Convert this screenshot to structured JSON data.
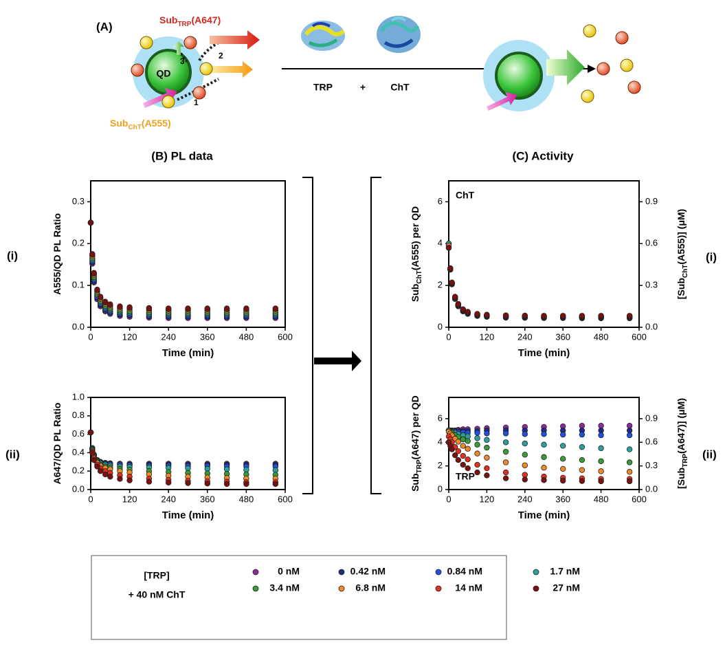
{
  "schematic": {
    "label": "(A)",
    "sub_trp": [
      "Sub",
      "TRP",
      "(A647)"
    ],
    "sub_cht": [
      "Sub",
      "ChT",
      "(A555)"
    ],
    "qd": "QD",
    "steps": [
      "1",
      "2",
      "3"
    ],
    "enzymes": [
      "TRP",
      "+",
      "ChT"
    ]
  },
  "panels": {
    "b_title": "(B)  PL data",
    "c_title": "(C)  Activity",
    "rows": [
      "(i)",
      "(ii)"
    ]
  },
  "legend": {
    "title": [
      "[TRP]",
      "+ 40 nM ChT"
    ],
    "entries": [
      {
        "name": "0 nM",
        "color": "#8e2a9e"
      },
      {
        "name": "0.42 nM",
        "color": "#1f2a8a"
      },
      {
        "name": "0.84 nM",
        "color": "#1f50e0"
      },
      {
        "name": "1.7 nM",
        "color": "#2aa19a"
      },
      {
        "name": "3.4 nM",
        "color": "#3a9a3a"
      },
      {
        "name": "6.8 nM",
        "color": "#f08a28"
      },
      {
        "name": "14 nM",
        "color": "#e03020"
      },
      {
        "name": "27 nM",
        "color": "#7a1010"
      }
    ]
  },
  "chart_data": [
    {
      "type": "scatter",
      "xlabel": "Time (min)",
      "ylabel": [
        "A555/QD PL Ratio"
      ],
      "x": [
        0,
        5,
        10,
        20,
        30,
        45,
        60,
        90,
        120,
        180,
        240,
        300,
        360,
        420,
        480,
        570
      ],
      "xlim": [
        0,
        600
      ],
      "xticks": [
        0,
        120,
        240,
        360,
        480,
        600
      ],
      "ylim": [
        0,
        0.35
      ],
      "yticks": [
        {
          "value": 0,
          "label": "0.0"
        },
        0.1,
        0.2,
        0.3
      ],
      "series": [
        {
          "values": [
            0.25,
            0.152,
            0.107,
            0.067,
            0.05,
            0.038,
            0.032,
            0.027,
            0.025,
            0.023,
            0.022,
            0.022,
            0.022,
            0.022,
            0.022,
            0.022
          ]
        },
        {
          "values": [
            0.25,
            0.155,
            0.11,
            0.07,
            0.053,
            0.041,
            0.035,
            0.03,
            0.028,
            0.026,
            0.025,
            0.025,
            0.025,
            0.025,
            0.025,
            0.025
          ]
        },
        {
          "values": [
            0.25,
            0.158,
            0.113,
            0.073,
            0.056,
            0.044,
            0.038,
            0.033,
            0.031,
            0.029,
            0.028,
            0.028,
            0.028,
            0.028,
            0.028,
            0.028
          ]
        },
        {
          "values": [
            0.25,
            0.162,
            0.117,
            0.077,
            0.06,
            0.048,
            0.042,
            0.037,
            0.035,
            0.033,
            0.032,
            0.032,
            0.032,
            0.032,
            0.032,
            0.032
          ]
        },
        {
          "values": [
            0.25,
            0.165,
            0.12,
            0.08,
            0.063,
            0.051,
            0.045,
            0.04,
            0.038,
            0.036,
            0.035,
            0.035,
            0.035,
            0.035,
            0.035,
            0.035
          ]
        },
        {
          "values": [
            0.25,
            0.17,
            0.125,
            0.085,
            0.068,
            0.056,
            0.05,
            0.045,
            0.043,
            0.041,
            0.04,
            0.04,
            0.04,
            0.04,
            0.04,
            0.04
          ]
        },
        {
          "values": [
            0.25,
            0.173,
            0.128,
            0.088,
            0.071,
            0.059,
            0.053,
            0.048,
            0.046,
            0.044,
            0.043,
            0.043,
            0.043,
            0.043,
            0.043,
            0.043
          ]
        },
        {
          "values": [
            0.25,
            0.175,
            0.13,
            0.09,
            0.073,
            0.061,
            0.055,
            0.05,
            0.048,
            0.046,
            0.045,
            0.045,
            0.045,
            0.045,
            0.045,
            0.045
          ]
        }
      ]
    },
    {
      "type": "scatter",
      "xlabel": "Time (min)",
      "ylabel": [
        "A647/QD PL Ratio"
      ],
      "x": [
        0,
        5,
        10,
        20,
        30,
        45,
        60,
        90,
        120,
        180,
        240,
        300,
        360,
        420,
        480,
        570
      ],
      "xlim": [
        0,
        600
      ],
      "xticks": [
        0,
        120,
        240,
        360,
        480,
        600
      ],
      "ylim": [
        0,
        1
      ],
      "yticks": [
        {
          "value": 0,
          "label": "0.0"
        },
        0.2,
        0.4,
        0.6,
        0.8,
        {
          "value": 1,
          "label": "1.0"
        }
      ],
      "series": [
        {
          "values": [
            0.62,
            0.45,
            0.38,
            0.32,
            0.3,
            0.29,
            0.285,
            0.28,
            0.28,
            0.28,
            0.28,
            0.28,
            0.28,
            0.28,
            0.28,
            0.28
          ]
        },
        {
          "values": [
            0.62,
            0.45,
            0.38,
            0.32,
            0.3,
            0.285,
            0.28,
            0.275,
            0.27,
            0.27,
            0.27,
            0.27,
            0.27,
            0.27,
            0.27,
            0.27
          ]
        },
        {
          "values": [
            0.62,
            0.44,
            0.37,
            0.31,
            0.29,
            0.28,
            0.275,
            0.27,
            0.265,
            0.26,
            0.26,
            0.255,
            0.255,
            0.25,
            0.25,
            0.25
          ]
        },
        {
          "values": [
            0.62,
            0.44,
            0.37,
            0.31,
            0.285,
            0.27,
            0.26,
            0.25,
            0.245,
            0.24,
            0.235,
            0.23,
            0.225,
            0.22,
            0.215,
            0.21
          ]
        },
        {
          "values": [
            0.62,
            0.43,
            0.36,
            0.3,
            0.27,
            0.25,
            0.24,
            0.225,
            0.215,
            0.2,
            0.19,
            0.18,
            0.175,
            0.17,
            0.165,
            0.16
          ]
        },
        {
          "values": [
            0.62,
            0.42,
            0.35,
            0.29,
            0.26,
            0.235,
            0.22,
            0.2,
            0.185,
            0.165,
            0.15,
            0.14,
            0.13,
            0.125,
            0.12,
            0.12
          ]
        },
        {
          "values": [
            0.62,
            0.41,
            0.34,
            0.27,
            0.23,
            0.2,
            0.18,
            0.155,
            0.14,
            0.12,
            0.105,
            0.095,
            0.09,
            0.085,
            0.08,
            0.08
          ]
        },
        {
          "values": [
            0.62,
            0.4,
            0.32,
            0.25,
            0.2,
            0.165,
            0.14,
            0.115,
            0.1,
            0.085,
            0.075,
            0.07,
            0.065,
            0.06,
            0.06,
            0.06
          ]
        }
      ]
    },
    {
      "type": "scatter",
      "xlabel": "Time (min)",
      "ylabel": [
        "Sub",
        "ChT",
        "(A555) per QD"
      ],
      "y2label": [
        "[Sub",
        "ChT",
        "(A555)] (μM)"
      ],
      "annotation": "ChT",
      "x": [
        0,
        5,
        10,
        20,
        30,
        45,
        60,
        90,
        120,
        180,
        240,
        300,
        360,
        420,
        480,
        570
      ],
      "xlim": [
        0,
        600
      ],
      "xticks": [
        0,
        120,
        240,
        360,
        480,
        600
      ],
      "ylim": [
        0,
        7
      ],
      "yticks": [
        0,
        2,
        4,
        6
      ],
      "y2lim": [
        0,
        1.05
      ],
      "y2ticks": [
        {
          "value": 0,
          "label": "0.0"
        },
        0.3,
        0.6,
        0.9
      ],
      "series": [
        {
          "values": [
            4.0,
            2.75,
            2.05,
            1.35,
            1.0,
            0.76,
            0.64,
            0.54,
            0.5,
            0.46,
            0.45,
            0.44,
            0.44,
            0.43,
            0.43,
            0.43
          ]
        },
        {
          "values": [
            4.0,
            2.78,
            2.08,
            1.38,
            1.03,
            0.78,
            0.66,
            0.56,
            0.52,
            0.48,
            0.47,
            0.46,
            0.46,
            0.45,
            0.45,
            0.45
          ]
        },
        {
          "values": [
            4.0,
            2.8,
            2.1,
            1.4,
            1.05,
            0.8,
            0.68,
            0.58,
            0.54,
            0.5,
            0.49,
            0.48,
            0.48,
            0.48,
            0.48,
            0.48
          ]
        },
        {
          "values": [
            4.0,
            2.82,
            2.12,
            1.42,
            1.07,
            0.82,
            0.7,
            0.6,
            0.56,
            0.53,
            0.52,
            0.51,
            0.51,
            0.5,
            0.5,
            0.5
          ]
        },
        {
          "values": [
            3.9,
            2.8,
            2.1,
            1.42,
            1.07,
            0.82,
            0.7,
            0.6,
            0.56,
            0.53,
            0.52,
            0.52,
            0.51,
            0.51,
            0.51,
            0.51
          ]
        },
        {
          "values": [
            3.9,
            2.82,
            2.12,
            1.44,
            1.09,
            0.84,
            0.72,
            0.62,
            0.58,
            0.55,
            0.54,
            0.53,
            0.53,
            0.53,
            0.53,
            0.53
          ]
        },
        {
          "values": [
            3.8,
            2.8,
            2.12,
            1.44,
            1.1,
            0.85,
            0.73,
            0.63,
            0.59,
            0.56,
            0.55,
            0.54,
            0.54,
            0.54,
            0.54,
            0.54
          ]
        },
        {
          "values": [
            3.8,
            2.82,
            2.14,
            1.46,
            1.12,
            0.86,
            0.74,
            0.64,
            0.6,
            0.57,
            0.56,
            0.55,
            0.55,
            0.55,
            0.55,
            0.55
          ]
        }
      ]
    },
    {
      "type": "scatter",
      "xlabel": "Time (min)",
      "ylabel": [
        "Sub",
        "TRP",
        "(A647) per QD"
      ],
      "y2label": [
        "[Sub",
        "TRP",
        "(A647)] (μM)"
      ],
      "annotation": "TRP",
      "x": [
        0,
        5,
        10,
        20,
        30,
        45,
        60,
        90,
        120,
        180,
        240,
        300,
        360,
        420,
        480,
        570
      ],
      "xlim": [
        0,
        600
      ],
      "xticks": [
        0,
        120,
        240,
        360,
        480,
        600
      ],
      "ylim": [
        0,
        7.8
      ],
      "yticks": [
        0,
        2,
        4,
        6
      ],
      "y2lim": [
        0,
        1.17
      ],
      "y2ticks": [
        {
          "value": 0,
          "label": "0.0"
        },
        0.3,
        0.6,
        0.9
      ],
      "series": [
        {
          "values": [
            5,
            5,
            5,
            5,
            5.05,
            5.1,
            5.1,
            5.15,
            5.2,
            5.25,
            5.3,
            5.3,
            5.35,
            5.4,
            5.4,
            5.4
          ]
        },
        {
          "values": [
            5,
            5,
            5,
            4.95,
            4.95,
            4.95,
            4.95,
            4.95,
            5,
            5,
            5,
            5,
            5,
            5,
            5,
            5
          ]
        },
        {
          "values": [
            5,
            4.95,
            4.9,
            4.9,
            4.85,
            4.85,
            4.8,
            4.8,
            4.75,
            4.75,
            4.7,
            4.7,
            4.65,
            4.65,
            4.6,
            4.6
          ]
        },
        {
          "values": [
            5,
            4.95,
            4.9,
            4.8,
            4.7,
            4.6,
            4.5,
            4.35,
            4.2,
            4.0,
            3.9,
            3.8,
            3.7,
            3.6,
            3.5,
            3.4
          ]
        },
        {
          "values": [
            5,
            4.9,
            4.8,
            4.6,
            4.45,
            4.25,
            4.1,
            3.8,
            3.55,
            3.2,
            2.95,
            2.75,
            2.6,
            2.5,
            2.4,
            2.3
          ]
        },
        {
          "values": [
            4.9,
            4.75,
            4.6,
            4.3,
            4.05,
            3.7,
            3.45,
            3.05,
            2.7,
            2.3,
            2.05,
            1.85,
            1.75,
            1.65,
            1.55,
            1.5
          ]
        },
        {
          "values": [
            4.5,
            4.25,
            4.0,
            3.6,
            3.25,
            2.85,
            2.55,
            2.1,
            1.8,
            1.45,
            1.25,
            1.1,
            1.0,
            0.95,
            0.9,
            0.9
          ]
        },
        {
          "values": [
            4.0,
            3.7,
            3.4,
            2.9,
            2.5,
            2.1,
            1.8,
            1.45,
            1.2,
            0.95,
            0.85,
            0.8,
            0.75,
            0.72,
            0.7,
            0.7
          ]
        }
      ]
    }
  ]
}
